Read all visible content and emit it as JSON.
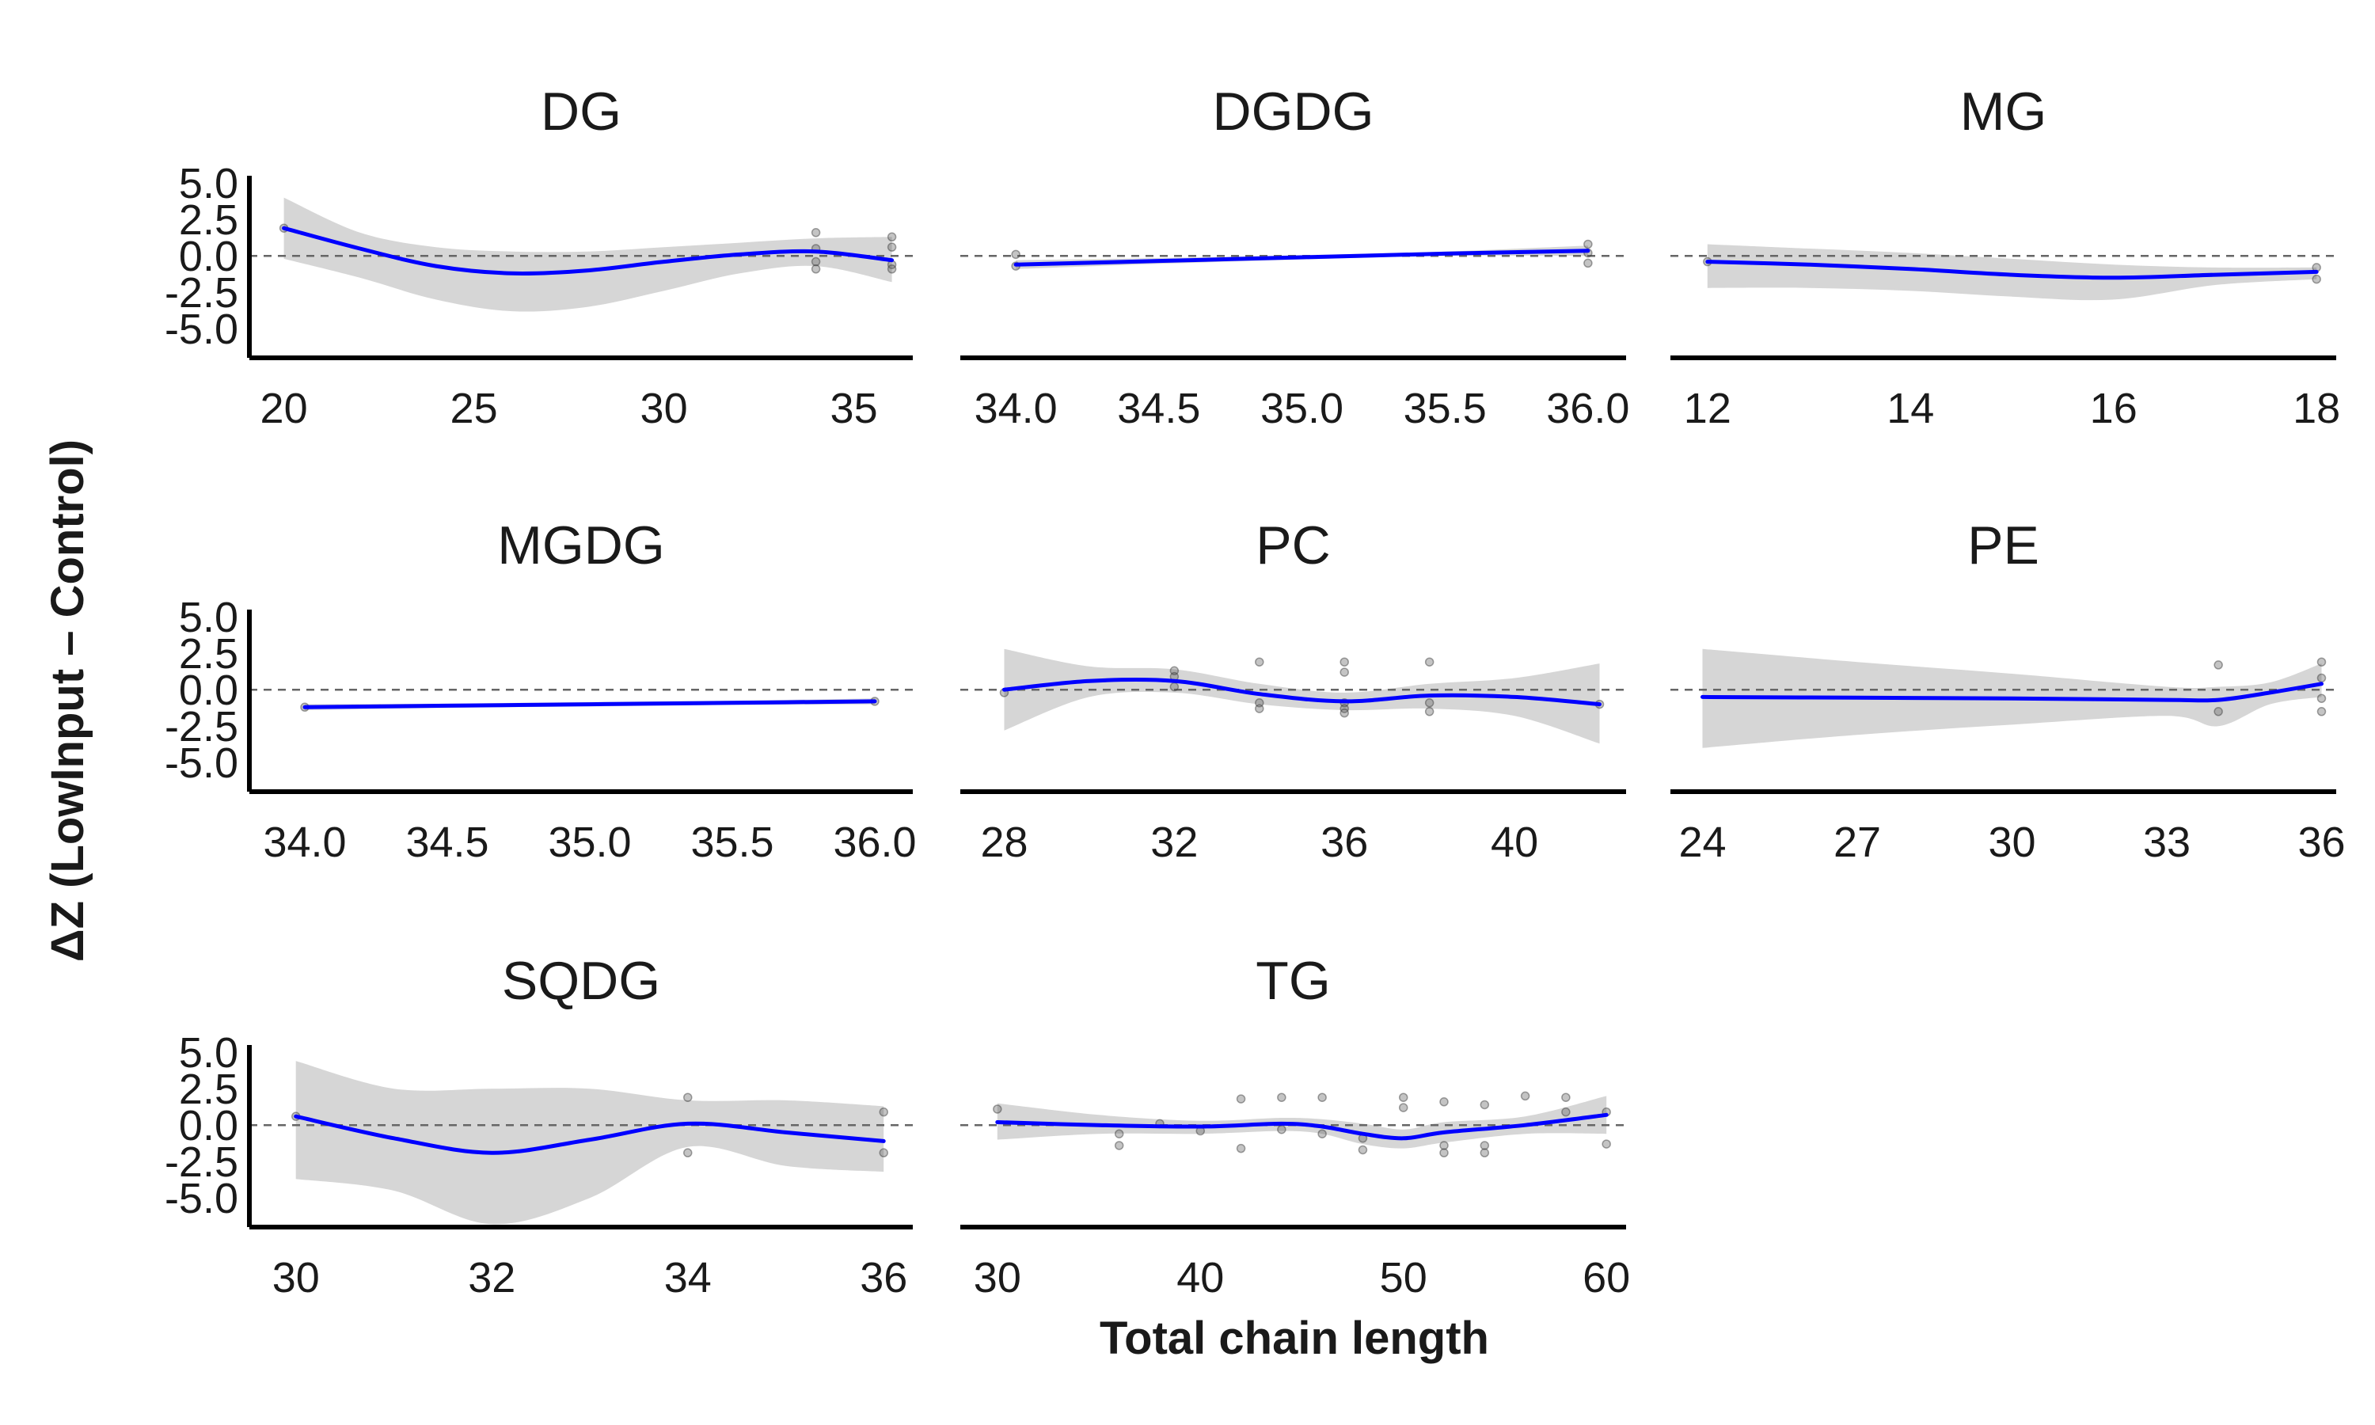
{
  "chart_data": {
    "type": "scatter",
    "xlabel": "Total chain length",
    "ylabel": "ΔZ (LowInput – Control)",
    "y_ticks": [
      "5.0",
      "2.5",
      "0.0",
      "-2.5",
      "-5.0"
    ],
    "y_tick_values": [
      5,
      2.5,
      0,
      -2.5,
      -5
    ],
    "ylim": [
      -7,
      5.5
    ],
    "reference_line_y": 0,
    "grid": false,
    "colors": {
      "smooth": "#0000ff",
      "band": "#d6d6d6",
      "points": "#555555",
      "refline": "#666666"
    },
    "panels": [
      {
        "title": "DG",
        "xlim": [
          19.8,
          36.3
        ],
        "x_ticks": [
          20,
          25,
          30,
          35
        ],
        "points": [
          [
            20,
            1.9
          ],
          [
            34,
            1.6
          ],
          [
            34,
            0.5
          ],
          [
            34,
            -0.4
          ],
          [
            34,
            -0.9
          ],
          [
            36,
            1.3
          ],
          [
            36,
            0.6
          ],
          [
            36,
            -0.6
          ],
          [
            36,
            -0.9
          ]
        ],
        "smooth": [
          [
            20,
            1.9
          ],
          [
            22,
            0.5
          ],
          [
            24,
            -0.7
          ],
          [
            26,
            -1.2
          ],
          [
            28,
            -1.0
          ],
          [
            30,
            -0.4
          ],
          [
            32,
            0.1
          ],
          [
            34,
            0.3
          ],
          [
            36,
            -0.3
          ]
        ],
        "band_upper": [
          [
            20,
            4.0
          ],
          [
            22,
            1.6
          ],
          [
            24,
            0.6
          ],
          [
            26,
            0.3
          ],
          [
            28,
            0.3
          ],
          [
            30,
            0.6
          ],
          [
            32,
            0.9
          ],
          [
            34,
            1.2
          ],
          [
            36,
            1.3
          ]
        ],
        "band_lower": [
          [
            20,
            -0.2
          ],
          [
            22,
            -1.5
          ],
          [
            24,
            -3.0
          ],
          [
            26,
            -3.8
          ],
          [
            28,
            -3.5
          ],
          [
            30,
            -2.4
          ],
          [
            32,
            -1.2
          ],
          [
            34,
            -0.7
          ],
          [
            36,
            -1.8
          ]
        ]
      },
      {
        "title": "DGDG",
        "xlim": [
          33.9,
          36.1
        ],
        "x_ticks": [
          34.0,
          34.5,
          35.0,
          35.5,
          36.0
        ],
        "points": [
          [
            34,
            0.1
          ],
          [
            34,
            -0.7
          ],
          [
            36,
            0.8
          ],
          [
            36,
            0.2
          ],
          [
            36,
            -0.5
          ]
        ],
        "smooth": [
          [
            34,
            -0.6
          ],
          [
            34.5,
            -0.35
          ],
          [
            35,
            -0.1
          ],
          [
            35.5,
            0.15
          ],
          [
            36,
            0.35
          ]
        ],
        "band_upper": [
          [
            34,
            -0.3
          ],
          [
            34.5,
            -0.15
          ],
          [
            35,
            0.05
          ],
          [
            35.5,
            0.3
          ],
          [
            36,
            0.7
          ]
        ],
        "band_lower": [
          [
            34,
            -0.9
          ],
          [
            34.5,
            -0.55
          ],
          [
            35,
            -0.25
          ],
          [
            35.5,
            0.0
          ],
          [
            36,
            0.0
          ]
        ]
      },
      {
        "title": "MG",
        "xlim": [
          11.9,
          18.1
        ],
        "x_ticks": [
          12,
          14,
          16,
          18
        ],
        "points": [
          [
            12,
            -0.4
          ],
          [
            18,
            -0.8
          ],
          [
            18,
            -1.6
          ]
        ],
        "smooth": [
          [
            12,
            -0.4
          ],
          [
            13,
            -0.6
          ],
          [
            14,
            -0.9
          ],
          [
            15,
            -1.3
          ],
          [
            16,
            -1.5
          ],
          [
            17,
            -1.3
          ],
          [
            18,
            -1.1
          ]
        ],
        "band_upper": [
          [
            12,
            0.8
          ],
          [
            13,
            0.5
          ],
          [
            14,
            0.2
          ],
          [
            15,
            -0.2
          ],
          [
            16,
            -0.6
          ],
          [
            17,
            -0.8
          ],
          [
            18,
            -0.8
          ]
        ],
        "band_lower": [
          [
            12,
            -2.2
          ],
          [
            13,
            -2.2
          ],
          [
            14,
            -2.4
          ],
          [
            15,
            -2.8
          ],
          [
            16,
            -3.0
          ],
          [
            17,
            -2.0
          ],
          [
            18,
            -1.6
          ]
        ]
      },
      {
        "title": "MGDG",
        "xlim": [
          33.9,
          36.1
        ],
        "x_ticks": [
          34.0,
          34.5,
          35.0,
          35.5,
          36.0
        ],
        "points": [
          [
            34,
            -1.2
          ],
          [
            36,
            -0.8
          ]
        ],
        "smooth": [
          [
            34,
            -1.2
          ],
          [
            34.5,
            -1.1
          ],
          [
            35,
            -1.0
          ],
          [
            35.5,
            -0.9
          ],
          [
            36,
            -0.8
          ]
        ],
        "band_upper": [
          [
            34,
            -1.0
          ],
          [
            34.5,
            -0.95
          ],
          [
            35,
            -0.85
          ],
          [
            35.5,
            -0.75
          ],
          [
            36,
            -0.6
          ]
        ],
        "band_lower": [
          [
            34,
            -1.4
          ],
          [
            34.5,
            -1.25
          ],
          [
            35,
            -1.15
          ],
          [
            35.5,
            -1.05
          ],
          [
            36,
            -1.0
          ]
        ]
      },
      {
        "title": "PC",
        "xlim": [
          27.6,
          42.4
        ],
        "x_ticks": [
          28,
          32,
          36,
          40
        ],
        "points": [
          [
            28,
            -0.2
          ],
          [
            32,
            1.3
          ],
          [
            32,
            0.9
          ],
          [
            32,
            0.2
          ],
          [
            34,
            1.9
          ],
          [
            34,
            -0.9
          ],
          [
            34,
            -1.3
          ],
          [
            36,
            1.9
          ],
          [
            36,
            1.2
          ],
          [
            36,
            -0.9
          ],
          [
            36,
            -1.3
          ],
          [
            36,
            -1.6
          ],
          [
            38,
            1.9
          ],
          [
            38,
            -0.9
          ],
          [
            38,
            -1.5
          ],
          [
            42,
            -1.0
          ]
        ],
        "smooth": [
          [
            28,
            0.0
          ],
          [
            30,
            0.6
          ],
          [
            32,
            0.6
          ],
          [
            34,
            -0.3
          ],
          [
            36,
            -0.8
          ],
          [
            38,
            -0.4
          ],
          [
            40,
            -0.5
          ],
          [
            42,
            -1.0
          ]
        ],
        "band_upper": [
          [
            28,
            2.8
          ],
          [
            30,
            1.6
          ],
          [
            32,
            1.4
          ],
          [
            34,
            0.4
          ],
          [
            36,
            -0.2
          ],
          [
            38,
            0.4
          ],
          [
            40,
            0.8
          ],
          [
            42,
            1.8
          ]
        ],
        "band_lower": [
          [
            28,
            -2.8
          ],
          [
            30,
            -0.5
          ],
          [
            32,
            -0.2
          ],
          [
            34,
            -1.0
          ],
          [
            36,
            -1.4
          ],
          [
            38,
            -1.3
          ],
          [
            40,
            -1.8
          ],
          [
            42,
            -3.7
          ]
        ]
      },
      {
        "title": "PE",
        "xlim": [
          23.9,
          36.1
        ],
        "x_ticks": [
          24,
          27,
          30,
          33,
          36
        ],
        "points": [
          [
            34,
            1.7
          ],
          [
            34,
            -1.5
          ],
          [
            36,
            1.9
          ],
          [
            36,
            0.8
          ],
          [
            36,
            -0.6
          ],
          [
            36,
            -1.5
          ]
        ],
        "smooth": [
          [
            24,
            -0.5
          ],
          [
            27,
            -0.55
          ],
          [
            30,
            -0.6
          ],
          [
            33,
            -0.7
          ],
          [
            34,
            -0.7
          ],
          [
            35,
            -0.2
          ],
          [
            36,
            0.4
          ]
        ],
        "band_upper": [
          [
            24,
            2.8
          ],
          [
            27,
            1.9
          ],
          [
            30,
            1.1
          ],
          [
            33,
            0.2
          ],
          [
            34,
            0.2
          ],
          [
            35,
            0.5
          ],
          [
            36,
            1.8
          ]
        ],
        "band_lower": [
          [
            24,
            -4.0
          ],
          [
            27,
            -3.1
          ],
          [
            30,
            -2.4
          ],
          [
            33,
            -1.8
          ],
          [
            34,
            -2.5
          ],
          [
            35,
            -1.0
          ],
          [
            36,
            -0.5
          ]
        ]
      },
      {
        "title": "SQDG",
        "xlim": [
          29.8,
          36.2
        ],
        "x_ticks": [
          30,
          32,
          34,
          36
        ],
        "points": [
          [
            30,
            0.6
          ],
          [
            34,
            1.9
          ],
          [
            34,
            -1.9
          ],
          [
            36,
            0.9
          ],
          [
            36,
            -1.9
          ]
        ],
        "smooth": [
          [
            30,
            0.6
          ],
          [
            31,
            -0.9
          ],
          [
            32,
            -1.9
          ],
          [
            33,
            -1.0
          ],
          [
            34,
            0.1
          ],
          [
            35,
            -0.5
          ],
          [
            36,
            -1.1
          ]
        ],
        "band_upper": [
          [
            30,
            4.4
          ],
          [
            31,
            2.5
          ],
          [
            32,
            2.5
          ],
          [
            33,
            2.5
          ],
          [
            34,
            1.7
          ],
          [
            35,
            1.7
          ],
          [
            36,
            1.3
          ]
        ],
        "band_lower": [
          [
            30,
            -3.7
          ],
          [
            31,
            -4.5
          ],
          [
            32,
            -6.8
          ],
          [
            33,
            -5.0
          ],
          [
            34,
            -1.5
          ],
          [
            35,
            -2.8
          ],
          [
            36,
            -3.2
          ]
        ]
      },
      {
        "title": "TG",
        "xlim": [
          29.5,
          60.5
        ],
        "x_ticks": [
          30,
          40,
          50,
          60
        ],
        "points": [
          [
            30,
            1.1
          ],
          [
            36,
            -0.6
          ],
          [
            36,
            -1.4
          ],
          [
            38,
            0.1
          ],
          [
            40,
            -0.4
          ],
          [
            42,
            1.8
          ],
          [
            42,
            -1.6
          ],
          [
            44,
            1.9
          ],
          [
            44,
            -0.3
          ],
          [
            46,
            1.9
          ],
          [
            46,
            -0.6
          ],
          [
            48,
            -0.9
          ],
          [
            48,
            -1.7
          ],
          [
            50,
            1.9
          ],
          [
            50,
            1.2
          ],
          [
            52,
            1.6
          ],
          [
            52,
            -1.4
          ],
          [
            52,
            -1.9
          ],
          [
            54,
            1.4
          ],
          [
            54,
            -1.4
          ],
          [
            54,
            -1.9
          ],
          [
            56,
            2.0
          ],
          [
            58,
            1.9
          ],
          [
            58,
            0.9
          ],
          [
            60,
            0.9
          ],
          [
            60,
            -1.3
          ]
        ],
        "smooth": [
          [
            30,
            0.2
          ],
          [
            35,
            0.0
          ],
          [
            40,
            -0.1
          ],
          [
            44,
            0.1
          ],
          [
            46,
            -0.1
          ],
          [
            48,
            -0.6
          ],
          [
            50,
            -0.9
          ],
          [
            52,
            -0.5
          ],
          [
            56,
            0.0
          ],
          [
            60,
            0.7
          ]
        ],
        "band_upper": [
          [
            30,
            1.5
          ],
          [
            35,
            0.7
          ],
          [
            40,
            0.3
          ],
          [
            44,
            0.5
          ],
          [
            46,
            0.4
          ],
          [
            48,
            0.1
          ],
          [
            50,
            -0.3
          ],
          [
            52,
            0.2
          ],
          [
            56,
            0.6
          ],
          [
            60,
            2.0
          ]
        ],
        "band_lower": [
          [
            30,
            -1.0
          ],
          [
            35,
            -0.6
          ],
          [
            40,
            -0.6
          ],
          [
            44,
            -0.4
          ],
          [
            46,
            -0.6
          ],
          [
            48,
            -1.3
          ],
          [
            50,
            -1.6
          ],
          [
            52,
            -1.2
          ],
          [
            56,
            -0.6
          ],
          [
            60,
            -0.6
          ]
        ]
      }
    ]
  }
}
